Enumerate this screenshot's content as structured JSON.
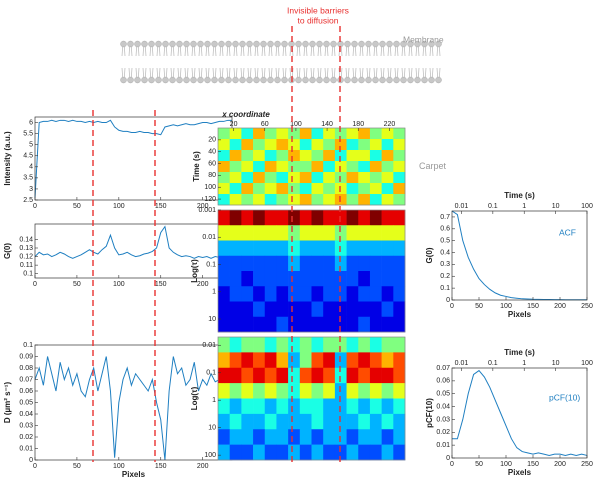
{
  "title_lines": [
    "Invisible barriers",
    "to diffusion"
  ],
  "membrane_label": "Membrane",
  "chart_data": [
    {
      "type": "line",
      "ylabel": "Intensity (a.u.)",
      "color": "#1f7fc1",
      "x": [
        0,
        5,
        10,
        15,
        20,
        25,
        30,
        35,
        40,
        45,
        50,
        55,
        60,
        65,
        70,
        75,
        80,
        85,
        90,
        95,
        100,
        105,
        110,
        115,
        120,
        125,
        130,
        135,
        140,
        145,
        150,
        155,
        160,
        165,
        170,
        175,
        180,
        185,
        190,
        195,
        200,
        205,
        210,
        215,
        220,
        225,
        230,
        235
      ],
      "values": [
        2.6,
        6.0,
        6.05,
        6.05,
        6.1,
        6.05,
        6.1,
        6.1,
        6.05,
        6.1,
        6.05,
        6.05,
        6.0,
        6.05,
        6.0,
        6.05,
        6.0,
        6.0,
        6.1,
        5.8,
        5.65,
        5.6,
        5.6,
        5.55,
        5.55,
        5.6,
        5.55,
        5.55,
        5.5,
        5.5,
        5.45,
        5.8,
        5.85,
        5.9,
        5.85,
        5.9,
        5.95,
        5.9,
        5.9,
        5.95,
        6.0,
        6.0,
        5.95,
        6.0,
        6.05,
        6.05,
        6.1,
        6.1
      ],
      "xlim": [
        0,
        235
      ],
      "xticks": [
        0,
        50,
        100,
        150,
        200
      ],
      "ylim": [
        2.5,
        6.25
      ],
      "yticks": [
        2.5,
        3,
        3.5,
        4,
        4.5,
        5,
        5.5,
        6
      ]
    },
    {
      "type": "line",
      "ylabel": "G(0)",
      "color": "#1f7fc1",
      "x": [
        0,
        5,
        10,
        15,
        20,
        25,
        30,
        35,
        40,
        45,
        50,
        55,
        60,
        65,
        70,
        75,
        80,
        85,
        90,
        95,
        100,
        105,
        110,
        115,
        120,
        125,
        130,
        135,
        140,
        145,
        150,
        155,
        160,
        165,
        170,
        175,
        180,
        185,
        190,
        195,
        200,
        205,
        210,
        215,
        220,
        225,
        230,
        235
      ],
      "values": [
        0.12,
        0.125,
        0.122,
        0.123,
        0.12,
        0.122,
        0.125,
        0.123,
        0.12,
        0.118,
        0.12,
        0.122,
        0.125,
        0.128,
        0.125,
        0.123,
        0.128,
        0.132,
        0.145,
        0.13,
        0.122,
        0.123,
        0.125,
        0.122,
        0.12,
        0.121,
        0.123,
        0.124,
        0.126,
        0.13,
        0.148,
        0.155,
        0.13,
        0.125,
        0.122,
        0.12,
        0.121,
        0.12,
        0.118,
        0.12,
        0.119,
        0.12,
        0.118,
        0.12,
        0.119,
        0.118,
        0.117,
        0.118
      ],
      "xlim": [
        0,
        235
      ],
      "xticks": [
        0,
        50,
        100,
        150,
        200
      ],
      "ylim": [
        0.095,
        0.158
      ],
      "yticks": [
        0.1,
        0.11,
        0.12,
        0.13,
        0.14
      ]
    },
    {
      "type": "line",
      "ylabel": "D (µm² s⁻¹)",
      "xlabel": "Pixels",
      "color": "#1f7fc1",
      "x": [
        0,
        5,
        10,
        15,
        20,
        25,
        30,
        35,
        40,
        45,
        50,
        55,
        60,
        65,
        70,
        75,
        80,
        85,
        90,
        95,
        100,
        105,
        110,
        115,
        120,
        125,
        130,
        135,
        140,
        145,
        150,
        155,
        160,
        165,
        170,
        175,
        180,
        185,
        190,
        195,
        200,
        205,
        210,
        215,
        220,
        225,
        230,
        235
      ],
      "values": [
        0.07,
        0.08,
        0.065,
        0.09,
        0.075,
        0.06,
        0.085,
        0.07,
        0.08,
        0.065,
        0.075,
        0.06,
        0.055,
        0.07,
        0.08,
        0.06,
        0.075,
        0.09,
        0.06,
        0.002,
        0.05,
        0.07,
        0.08,
        0.065,
        0.075,
        0.07,
        0.065,
        0.06,
        0.07,
        0.05,
        0.035,
        0,
        0.06,
        0.09,
        0.075,
        0.08,
        0.065,
        0.07,
        0.085,
        0.06,
        0.07,
        0.065,
        0.075,
        0.068,
        0.07,
        0.065,
        0.072,
        0.068
      ],
      "xlim": [
        0,
        235
      ],
      "xticks": [
        0,
        50,
        100,
        150,
        200
      ],
      "ylim": [
        0,
        0.1
      ],
      "yticks": [
        0,
        0.01,
        0.02,
        0.03,
        0.04,
        0.05,
        0.06,
        0.07,
        0.08,
        0.09,
        0.1
      ]
    },
    {
      "type": "heatmap",
      "label": "Carpet",
      "xlabel": "x coordinate",
      "ylabel": "Time (s)",
      "colormap": "jet",
      "clim": [
        0,
        10
      ],
      "y_inverted": true,
      "xticks_position": "top",
      "xlim": [
        0,
        240
      ],
      "xticks": [
        20,
        60,
        100,
        140,
        180,
        220
      ],
      "ylim": [
        0,
        130
      ],
      "yticks": [
        20,
        40,
        60,
        80,
        100,
        120
      ],
      "values": [
        [
          5,
          6,
          4,
          7,
          5,
          6,
          5,
          7,
          4,
          6,
          5,
          6,
          7,
          5,
          6,
          5
        ],
        [
          6,
          4,
          7,
          5,
          6,
          7,
          6,
          4,
          6,
          5,
          7,
          4,
          5,
          6,
          4,
          6
        ],
        [
          4,
          7,
          5,
          6,
          4,
          5,
          7,
          6,
          5,
          7,
          4,
          6,
          6,
          4,
          7,
          5
        ],
        [
          7,
          5,
          6,
          4,
          7,
          6,
          5,
          5,
          7,
          4,
          6,
          5,
          4,
          7,
          5,
          6
        ],
        [
          5,
          6,
          4,
          7,
          5,
          4,
          6,
          7,
          4,
          6,
          5,
          7,
          6,
          5,
          6,
          4
        ],
        [
          6,
          4,
          7,
          5,
          6,
          7,
          5,
          4,
          6,
          5,
          6,
          4,
          5,
          6,
          4,
          7
        ],
        [
          4,
          6,
          5,
          6,
          4,
          5,
          6,
          7,
          5,
          6,
          7,
          5,
          7,
          4,
          6,
          5
        ]
      ]
    },
    {
      "type": "heatmap",
      "ylabel": "Log(τ)",
      "colormap": "jet",
      "clim": [
        0,
        10
      ],
      "y_inverted": true,
      "ylog": true,
      "xlim": [
        0,
        240
      ],
      "ylim": [
        0.001,
        30
      ],
      "yticks": [
        0.001,
        0.01,
        0.1,
        1,
        10
      ],
      "values": [
        [
          9,
          10,
          9,
          10,
          9,
          9,
          10,
          9,
          10,
          9,
          9,
          10,
          9,
          10,
          9,
          9
        ],
        [
          6,
          6,
          6,
          6,
          6,
          6,
          5,
          6,
          6,
          6,
          5,
          6,
          6,
          6,
          6,
          6
        ],
        [
          3,
          3,
          3,
          3,
          3,
          3,
          4,
          3,
          3,
          3,
          4,
          3,
          3,
          3,
          3,
          3
        ],
        [
          2,
          2,
          2,
          2,
          2,
          2,
          3,
          2,
          2,
          2,
          3,
          2,
          2,
          2,
          2,
          2
        ],
        [
          2,
          2,
          1,
          2,
          2,
          2,
          2,
          2,
          2,
          2,
          2,
          2,
          1,
          2,
          2,
          2
        ],
        [
          1,
          2,
          2,
          1,
          2,
          1,
          2,
          2,
          1,
          2,
          2,
          1,
          2,
          2,
          1,
          2
        ],
        [
          1,
          1,
          1,
          2,
          1,
          1,
          1,
          1,
          2,
          1,
          1,
          1,
          1,
          1,
          2,
          1
        ],
        [
          1,
          1,
          1,
          1,
          1,
          2,
          1,
          1,
          1,
          1,
          1,
          1,
          2,
          1,
          1,
          1
        ]
      ]
    },
    {
      "type": "heatmap",
      "ylabel": "Log(τ)",
      "colormap": "jet",
      "clim": [
        0,
        10
      ],
      "y_inverted": true,
      "ylog": true,
      "xlim": [
        0,
        240
      ],
      "ylim": [
        0.005,
        150
      ],
      "yticks": [
        0.01,
        0.1,
        1,
        10,
        100
      ],
      "values": [
        [
          5,
          4,
          5,
          5,
          4,
          5,
          4,
          5,
          4,
          5,
          5,
          4,
          5,
          4,
          5,
          5
        ],
        [
          7,
          8,
          9,
          8,
          9,
          7,
          3,
          5,
          8,
          9,
          3,
          8,
          9,
          8,
          7,
          8
        ],
        [
          9,
          9,
          8,
          9,
          8,
          9,
          4,
          8,
          9,
          8,
          4,
          9,
          8,
          9,
          9,
          8
        ],
        [
          6,
          5,
          6,
          5,
          6,
          5,
          4,
          6,
          5,
          6,
          3,
          6,
          5,
          6,
          5,
          6
        ],
        [
          4,
          3,
          4,
          4,
          3,
          4,
          3,
          4,
          4,
          3,
          3,
          4,
          3,
          4,
          3,
          4
        ],
        [
          3,
          4,
          3,
          3,
          4,
          3,
          3,
          3,
          4,
          3,
          3,
          3,
          4,
          3,
          4,
          3
        ],
        [
          2,
          3,
          3,
          2,
          3,
          3,
          2,
          3,
          2,
          3,
          3,
          2,
          3,
          3,
          2,
          3
        ],
        [
          3,
          2,
          2,
          3,
          2,
          2,
          3,
          2,
          3,
          2,
          2,
          3,
          2,
          2,
          3,
          2
        ]
      ]
    },
    {
      "type": "line",
      "label": "ACF",
      "xlabel": "Pixels",
      "ylabel": "G(0)",
      "x2label": "Time (s)",
      "color": "#1f7fc1",
      "x": [
        0,
        10,
        20,
        30,
        40,
        50,
        60,
        70,
        80,
        90,
        100,
        110,
        120,
        130,
        140,
        150,
        160,
        170,
        180,
        190,
        200,
        210,
        220,
        230,
        240,
        250
      ],
      "values": [
        0.75,
        0.72,
        0.5,
        0.36,
        0.26,
        0.18,
        0.13,
        0.09,
        0.06,
        0.04,
        0.03,
        0.02,
        0.015,
        0.01,
        0.008,
        0.006,
        0.005,
        0.004,
        0.004,
        0.003,
        0.003,
        0.002,
        0.002,
        0.002,
        0.002,
        0.002
      ],
      "xlim": [
        0,
        250
      ],
      "xticks": [
        0,
        50,
        100,
        150,
        200,
        250
      ],
      "ylim": [
        0,
        0.75
      ],
      "yticks": [
        0,
        0.1,
        0.2,
        0.3,
        0.4,
        0.5,
        0.6,
        0.7
      ],
      "x2lim": [
        0.005,
        100
      ],
      "x2log": true,
      "x2ticks": [
        0.01,
        0.1,
        1,
        10,
        100
      ]
    },
    {
      "type": "line",
      "label": "pCF(10)",
      "xlabel": "Pixels",
      "ylabel": "pCF(10)",
      "x2label": "Time (s)",
      "color": "#1f7fc1",
      "x": [
        0,
        10,
        20,
        30,
        40,
        50,
        60,
        70,
        80,
        90,
        100,
        110,
        120,
        130,
        140,
        150,
        160,
        170,
        180,
        190,
        200,
        210,
        220,
        230,
        240,
        250
      ],
      "values": [
        0.015,
        0.015,
        0.03,
        0.05,
        0.065,
        0.068,
        0.063,
        0.055,
        0.045,
        0.035,
        0.025,
        0.015,
        0.008,
        0.005,
        0.004,
        0.003,
        0.004,
        0.003,
        0.002,
        0.003,
        0.003,
        0.002,
        0.003,
        0.002,
        0.003,
        0.002
      ],
      "xlim": [
        0,
        250
      ],
      "xticks": [
        0,
        50,
        100,
        150,
        200,
        250
      ],
      "ylim": [
        0,
        0.07
      ],
      "yticks": [
        0,
        0.01,
        0.02,
        0.03,
        0.04,
        0.05,
        0.06,
        0.07
      ],
      "x2lim": [
        0.005,
        100
      ],
      "x2log": true,
      "x2ticks": [
        0.01,
        0.1,
        1,
        10,
        100
      ]
    }
  ]
}
